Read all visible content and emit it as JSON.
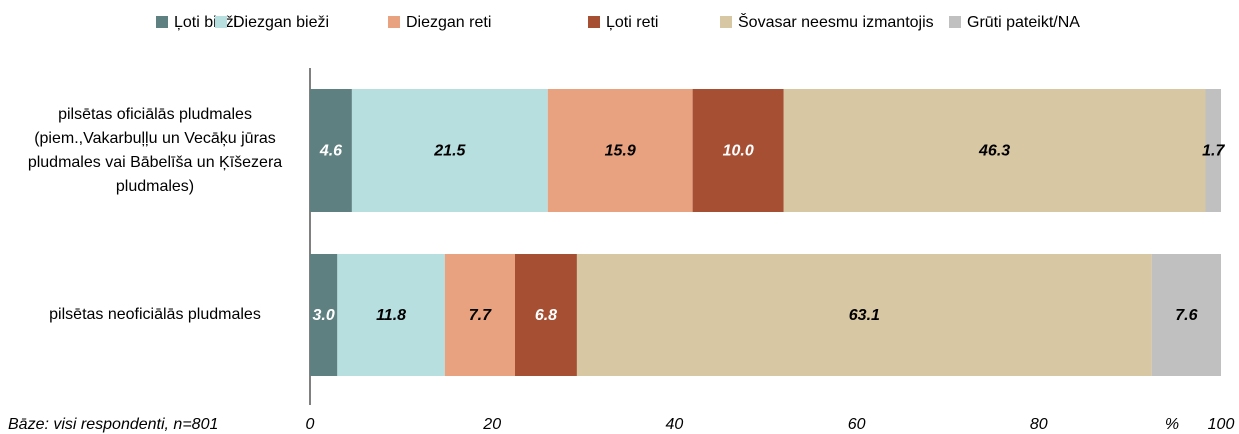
{
  "chart_data": {
    "type": "stacked-barh",
    "categories": [
      "pilsētas oficiālās pludmales (piem.,Vakarbuļļu un Vecāķu jūras pludmales vai Bābelīša un Ķīšezera pludmales)",
      "pilsētas neoficiālās pludmales"
    ],
    "series": [
      {
        "name": "Ļoti bieži",
        "color": "#5f8080",
        "label_color": "#ffffff",
        "values": [
          4.6,
          3.0
        ],
        "value_labels": [
          "4.6",
          "3.0"
        ]
      },
      {
        "name": "Diezgan bieži",
        "color": "#b7dfe0",
        "label_color": "#000000",
        "values": [
          21.5,
          11.8
        ],
        "value_labels": [
          "21.5",
          "11.8"
        ]
      },
      {
        "name": "Diezgan reti",
        "color": "#e8a27f",
        "label_color": "#000000",
        "values": [
          15.9,
          7.7
        ],
        "value_labels": [
          "15.9",
          "7.7"
        ]
      },
      {
        "name": "Ļoti reti",
        "color": "#a64f33",
        "label_color": "#ffffff",
        "values": [
          10.0,
          6.8
        ],
        "value_labels": [
          "10.0",
          "6.8"
        ]
      },
      {
        "name": "Šovasar neesmu izmantojis",
        "color": "#d7c7a3",
        "label_color": "#000000",
        "values": [
          46.3,
          63.1
        ],
        "value_labels": [
          "46.3",
          "63.1"
        ]
      },
      {
        "name": "Grūti pateikt/NA",
        "color": "#c0c0c0",
        "label_color": "#000000",
        "values": [
          1.7,
          7.6
        ],
        "value_labels": [
          "1.7",
          "7.6"
        ]
      }
    ],
    "xlim": [
      0,
      100
    ],
    "xticks": [
      0,
      20,
      40,
      60,
      80,
      100
    ],
    "x_label": "%",
    "note": "Bāze: visi respondenti, n=801",
    "legend": "top"
  }
}
